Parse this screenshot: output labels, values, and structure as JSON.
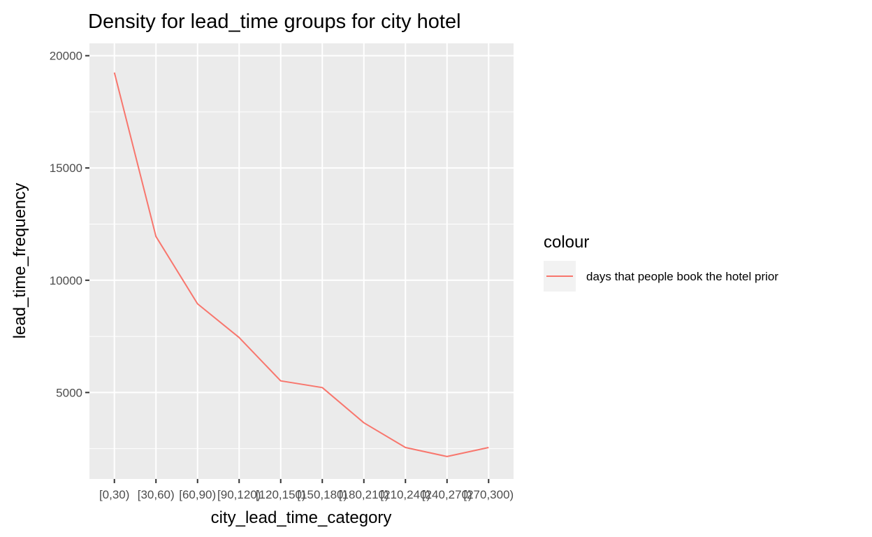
{
  "chart_data": {
    "type": "line",
    "title": "Density for lead_time groups for city hotel",
    "xlabel": "city_lead_time_category",
    "ylabel": "lead_time_frequency",
    "categories": [
      "[0,30)",
      "[30,60)",
      "[60,90)",
      "[90,120)",
      "[120,150)",
      "[150,180)",
      "[180,210)",
      "[210,240)",
      "[240,270)",
      "[270,300)"
    ],
    "series": [
      {
        "name": "days that people book the hotel prior",
        "color": "#f8766d",
        "values": [
          19250,
          11950,
          8950,
          7450,
          5520,
          5220,
          3650,
          2550,
          2150,
          2550
        ]
      }
    ],
    "ylim": [
      1150,
      20550
    ],
    "yticks": [
      5000,
      10000,
      15000,
      20000
    ],
    "grid": true,
    "legend_title": "colour",
    "legend_position": "right",
    "panel_background": "#ebebeb"
  }
}
